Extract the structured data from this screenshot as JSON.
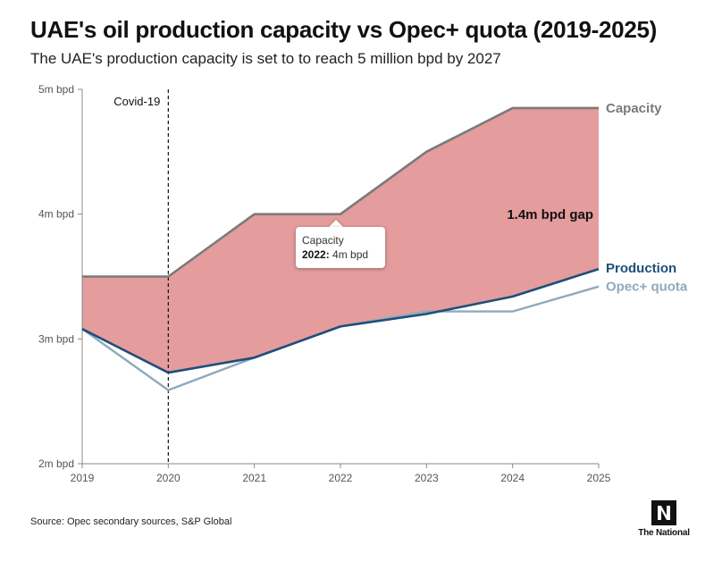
{
  "chart_data": {
    "type": "area",
    "title": "UAE's oil production capacity vs Opec+ quota (2019-2025)",
    "subtitle": "The UAE's production capacity is set to to reach 5 million bpd by 2027",
    "x": [
      2019,
      2020,
      2021,
      2022,
      2023,
      2024,
      2025
    ],
    "ylim": [
      2,
      5
    ],
    "yticks": [
      {
        "value": 2,
        "label": "2m bpd"
      },
      {
        "value": 3,
        "label": "3m bpd"
      },
      {
        "value": 4,
        "label": "4m bpd"
      },
      {
        "value": 5,
        "label": "5m bpd"
      }
    ],
    "series": [
      {
        "name": "Capacity",
        "color": "#7a7a7a",
        "values": [
          3.5,
          3.5,
          4.0,
          4.0,
          4.5,
          4.85,
          4.85
        ]
      },
      {
        "name": "Production",
        "color": "#1f4e79",
        "values": [
          3.08,
          2.73,
          2.85,
          3.1,
          3.2,
          3.34,
          3.56
        ]
      },
      {
        "name": "Opec+ quota",
        "color": "#8eaabd",
        "values": [
          3.08,
          2.59,
          2.85,
          3.1,
          3.22,
          3.22,
          3.42
        ]
      }
    ],
    "fill_color": "#e49c9d",
    "annotations": {
      "event_year": 2020,
      "event_label": "Covid-19",
      "gap_label": "1.4m bpd gap"
    },
    "tooltip": {
      "title": "Capacity",
      "year": "2022:",
      "value": "4m bpd"
    },
    "grid": false,
    "legend": "inline-right"
  },
  "footer": {
    "source": "Source: Opec secondary sources, S&P Global",
    "brand": "The National"
  }
}
